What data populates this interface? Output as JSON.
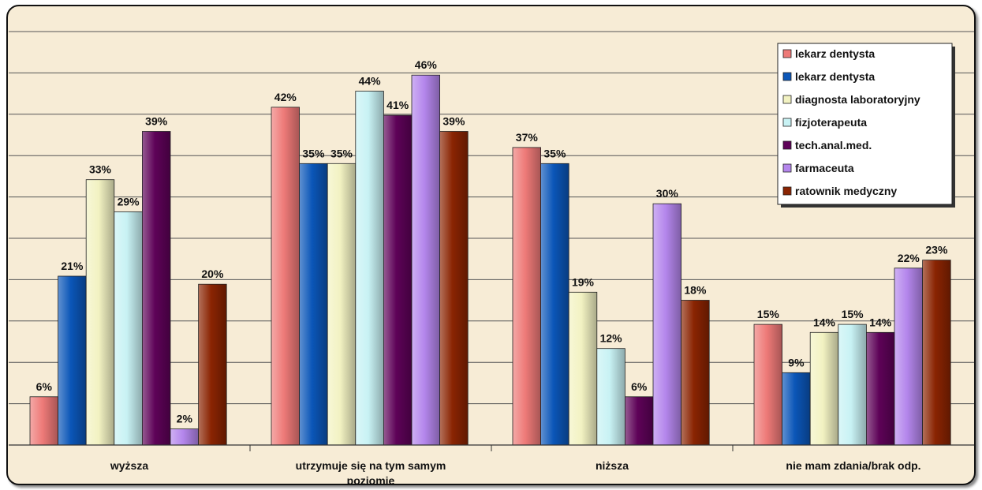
{
  "chart_data": {
    "type": "bar",
    "categories": [
      [
        "wyższa"
      ],
      [
        "utrzymuje się na tym samym",
        "poziomie"
      ],
      [
        "niższa"
      ],
      [
        "nie mam zdania/brak odp."
      ]
    ],
    "ylim": [
      0,
      52
    ],
    "grid": true,
    "legend_position": "top-right",
    "series": [
      {
        "name": "lekarz dentysta",
        "color": "#ee7a78",
        "values": [
          6,
          42,
          37,
          15
        ],
        "labels": [
          "6%",
          "42%",
          "37%",
          "15%"
        ]
      },
      {
        "name": "lekarz dentysta",
        "color": "#0b56b8",
        "values": [
          21,
          35,
          35,
          9
        ],
        "labels": [
          "21%",
          "35%",
          "35%",
          "9%"
        ]
      },
      {
        "name": "diagnosta laboratoryjny",
        "color": "#f2f2c2",
        "values": [
          33,
          35,
          19,
          14
        ],
        "labels": [
          "33%",
          "35%",
          "19%",
          "14%"
        ]
      },
      {
        "name": "fizjoterapeuta",
        "color": "#c8f2f4",
        "values": [
          29,
          44,
          12,
          15
        ],
        "labels": [
          "29%",
          "44%",
          "12%",
          "15%"
        ]
      },
      {
        "name": "tech.anal.med.",
        "color": "#5e0258",
        "values": [
          39,
          41,
          6,
          14
        ],
        "labels": [
          "39%",
          "41%",
          "6%",
          "14%"
        ]
      },
      {
        "name": "farmaceuta",
        "color": "#b486ec",
        "values": [
          2,
          46,
          30,
          22
        ],
        "labels": [
          "2%",
          "46%",
          "30%",
          "22%"
        ]
      },
      {
        "name": "ratownik medyczny",
        "color": "#8a2402",
        "values": [
          20,
          39,
          18,
          23
        ],
        "labels": [
          "20%",
          "39%",
          "18%",
          "23%"
        ]
      }
    ]
  }
}
